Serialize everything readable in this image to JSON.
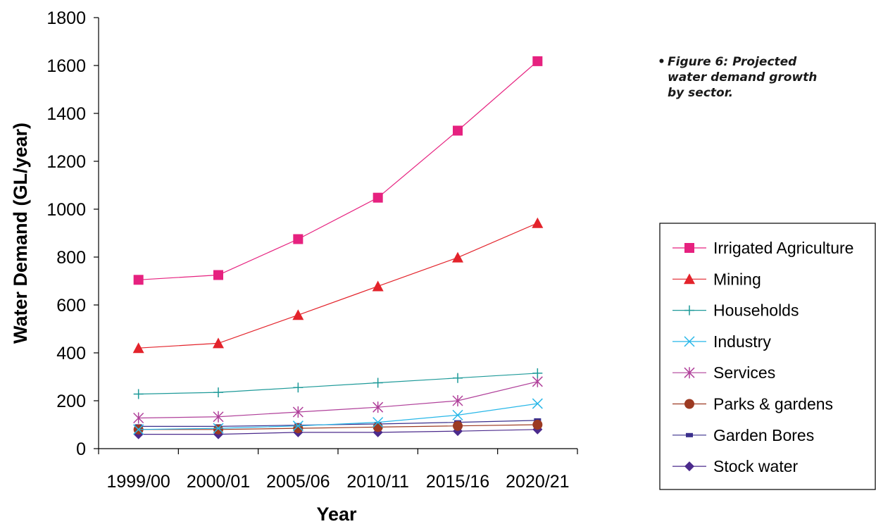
{
  "caption": "Figure 6: Projected water demand growth by sector.",
  "caption_bullet": "•",
  "chart_data": {
    "type": "line",
    "title": "",
    "xlabel": "Year",
    "ylabel": "Water Demand (GL/year)",
    "categories": [
      "1999/00",
      "2000/01",
      "2005/06",
      "2010/11",
      "2015/16",
      "2020/21"
    ],
    "ylim": [
      0,
      1800
    ],
    "yticks": [
      0,
      200,
      400,
      600,
      800,
      1000,
      1200,
      1400,
      1600,
      1800
    ],
    "grid": false,
    "legend_position": "right",
    "series": [
      {
        "name": "Irrigated Agriculture",
        "color": "#e6217f",
        "marker": "square",
        "values": [
          705,
          725,
          875,
          1048,
          1328,
          1618
        ]
      },
      {
        "name": "Mining",
        "color": "#e3232b",
        "marker": "triangle",
        "values": [
          420,
          440,
          558,
          678,
          798,
          942
        ]
      },
      {
        "name": "Households",
        "color": "#1e9a99",
        "marker": "plus",
        "values": [
          228,
          235,
          255,
          275,
          295,
          315
        ]
      },
      {
        "name": "Industry",
        "color": "#27b7e8",
        "marker": "x",
        "values": [
          80,
          85,
          95,
          110,
          140,
          188
        ]
      },
      {
        "name": "Services",
        "color": "#b0409a",
        "marker": "star",
        "values": [
          128,
          133,
          153,
          173,
          200,
          280
        ]
      },
      {
        "name": "Parks & gardens",
        "color": "#9c3a22",
        "marker": "circle",
        "values": [
          80,
          80,
          85,
          90,
          95,
          100
        ]
      },
      {
        "name": "Garden Bores",
        "color": "#3a2f8c",
        "marker": "dash",
        "values": [
          93,
          93,
          98,
          103,
          110,
          118
        ]
      },
      {
        "name": "Stock water",
        "color": "#4b2a8c",
        "marker": "diamond",
        "values": [
          60,
          60,
          68,
          68,
          73,
          80
        ]
      }
    ]
  }
}
